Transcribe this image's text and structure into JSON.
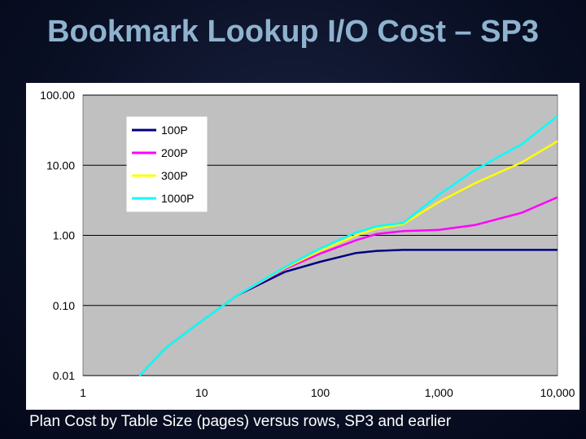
{
  "slide": {
    "title": "Bookmark Lookup I/O Cost – SP3",
    "caption": "Plan Cost by Table Size (pages) versus rows, SP3 and earlier"
  },
  "chart_data": {
    "type": "line",
    "title": "Bookmark Lookup I/O Cost – SP3",
    "xlabel": "",
    "ylabel": "",
    "x_scale": "log",
    "y_scale": "log",
    "xlim": [
      1,
      10000
    ],
    "ylim": [
      0.01,
      100
    ],
    "x_ticks": [
      "1",
      "10",
      "100",
      "1,000",
      "10,000"
    ],
    "x_tick_values": [
      1,
      10,
      100,
      1000,
      10000
    ],
    "y_ticks": [
      "100.00",
      "10.00",
      "1.00",
      "0.10",
      "0.01"
    ],
    "y_tick_values": [
      100,
      10,
      1,
      0.1,
      0.01
    ],
    "legend_position": "top-left",
    "plot_background": "#c0c0c0",
    "series": [
      {
        "name": "100P",
        "color": "#000080",
        "points": [
          [
            3,
            0.01
          ],
          [
            5,
            0.025
          ],
          [
            10,
            0.06
          ],
          [
            20,
            0.14
          ],
          [
            50,
            0.3
          ],
          [
            100,
            0.42
          ],
          [
            200,
            0.56
          ],
          [
            300,
            0.6
          ],
          [
            500,
            0.62
          ],
          [
            1000,
            0.62
          ],
          [
            3000,
            0.62
          ],
          [
            10000,
            0.62
          ]
        ]
      },
      {
        "name": "200P",
        "color": "#ff00ff",
        "points": [
          [
            3,
            0.01
          ],
          [
            5,
            0.025
          ],
          [
            10,
            0.06
          ],
          [
            20,
            0.14
          ],
          [
            50,
            0.33
          ],
          [
            100,
            0.55
          ],
          [
            200,
            0.85
          ],
          [
            300,
            1.05
          ],
          [
            500,
            1.15
          ],
          [
            1000,
            1.2
          ],
          [
            2000,
            1.4
          ],
          [
            5000,
            2.1
          ],
          [
            10000,
            3.5
          ]
        ]
      },
      {
        "name": "300P",
        "color": "#ffff00",
        "points": [
          [
            3,
            0.01
          ],
          [
            5,
            0.025
          ],
          [
            10,
            0.06
          ],
          [
            20,
            0.14
          ],
          [
            50,
            0.34
          ],
          [
            100,
            0.6
          ],
          [
            200,
            1.0
          ],
          [
            300,
            1.25
          ],
          [
            500,
            1.45
          ],
          [
            1000,
            3.0
          ],
          [
            2000,
            5.5
          ],
          [
            5000,
            11
          ],
          [
            10000,
            22
          ]
        ]
      },
      {
        "name": "1000P",
        "color": "#00ffff",
        "points": [
          [
            3,
            0.01
          ],
          [
            5,
            0.025
          ],
          [
            10,
            0.06
          ],
          [
            20,
            0.14
          ],
          [
            50,
            0.35
          ],
          [
            100,
            0.65
          ],
          [
            200,
            1.1
          ],
          [
            300,
            1.35
          ],
          [
            500,
            1.5
          ],
          [
            1000,
            3.8
          ],
          [
            2000,
            8.5
          ],
          [
            5000,
            20
          ],
          [
            10000,
            50
          ]
        ]
      }
    ]
  }
}
